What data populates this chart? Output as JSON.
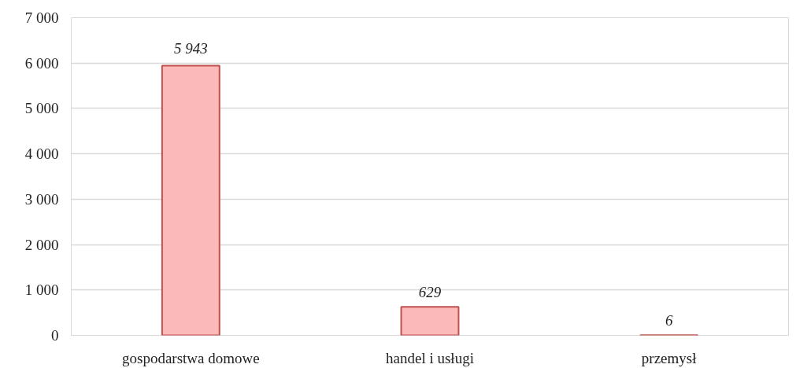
{
  "chart_data": {
    "type": "bar",
    "categories": [
      "gospodarstwa domowe",
      "handel i usługi",
      "przemysł"
    ],
    "values": [
      5943,
      629,
      6
    ],
    "value_labels": [
      "5 943",
      "629",
      "6"
    ],
    "color": "#fcb9b9",
    "ylim": [
      0,
      7000
    ],
    "yticks": [
      0,
      {
        "value": 1000,
        "label": "1 000"
      },
      {
        "value": 2000,
        "label": "2 000"
      },
      {
        "value": 3000,
        "label": "3 000"
      },
      {
        "value": 4000,
        "label": "4 000"
      },
      {
        "value": 5000,
        "label": "5 000"
      },
      {
        "value": 6000,
        "label": "6 000"
      },
      {
        "value": 7000,
        "label": "7 000"
      }
    ],
    "grid": "y"
  }
}
